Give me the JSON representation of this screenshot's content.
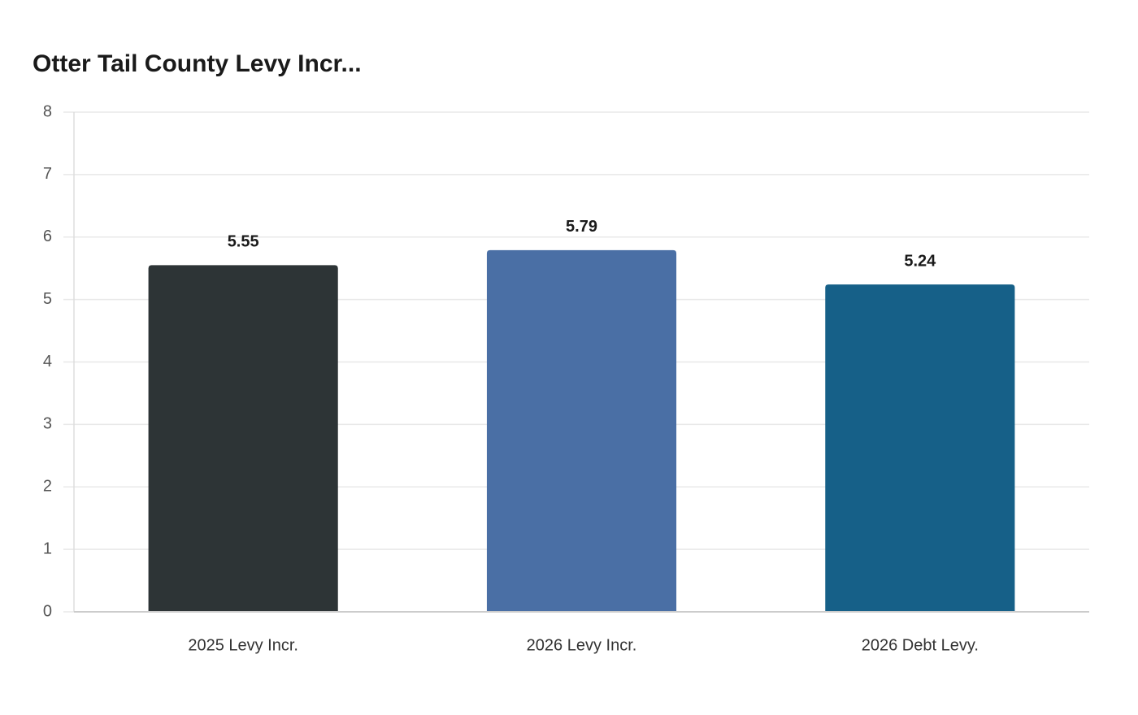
{
  "chart_data": {
    "type": "bar",
    "title": "Otter Tail County Levy Incr...",
    "categories": [
      "2025 Levy Incr.",
      "2026 Levy Incr.",
      "2026 Debt Levy."
    ],
    "values": [
      5.55,
      5.79,
      5.24
    ],
    "colors": [
      "#2d3436",
      "#4a6fa5",
      "#166088"
    ],
    "ylim": [
      0,
      8
    ],
    "yticks": [
      0,
      1,
      2,
      3,
      4,
      5,
      6,
      7,
      8
    ],
    "grid": true
  }
}
